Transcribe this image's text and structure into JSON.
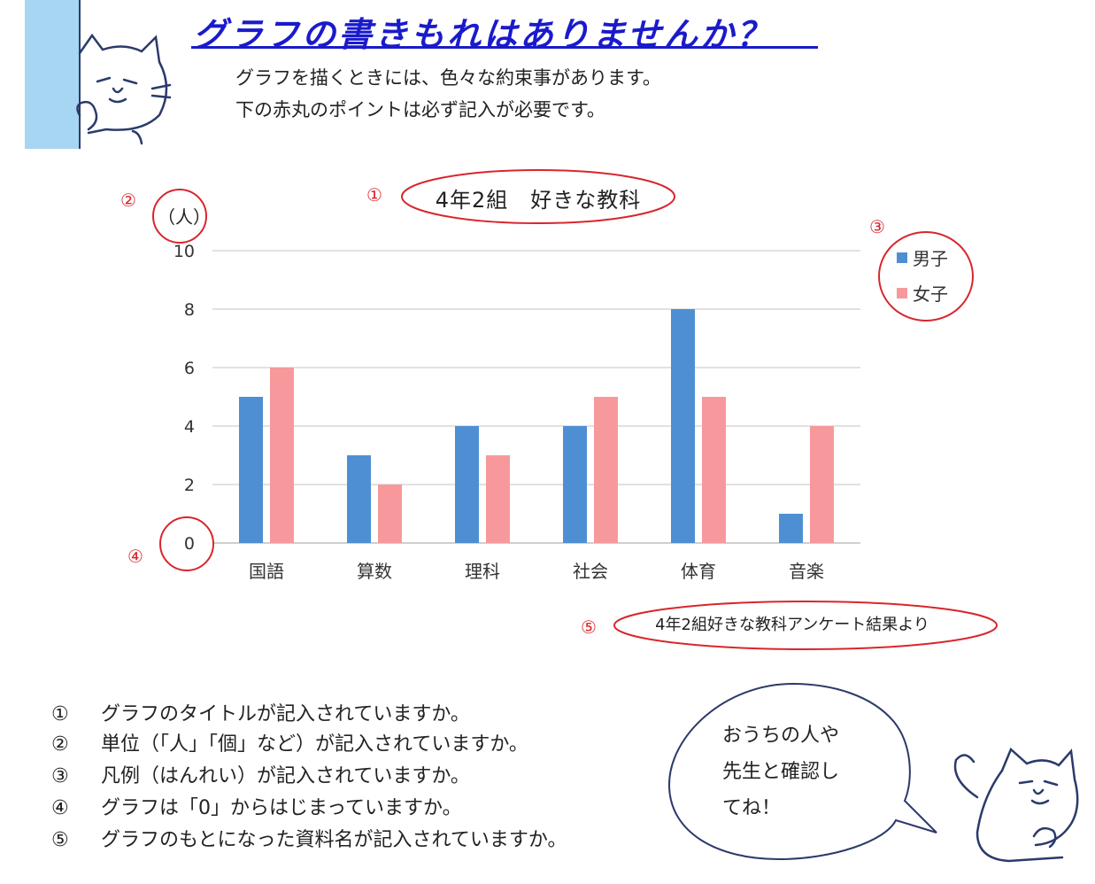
{
  "header": {
    "title": "グラフの書きもれはありませんか？",
    "intro_line1": "グラフを描くときには、色々な約束事があります。",
    "intro_line2": "下の赤丸のポイントは必ず記入が必要です。"
  },
  "markers": {
    "m1": "①",
    "m2": "②",
    "m3": "③",
    "m4": "④",
    "m5": "⑤"
  },
  "chart_data": {
    "type": "bar",
    "title": "4年2組　好きな教科",
    "ylabel": "（人）",
    "xlabel": "",
    "categories": [
      "国語",
      "算数",
      "理科",
      "社会",
      "体育",
      "音楽"
    ],
    "series": [
      {
        "name": "男子",
        "values": [
          5,
          3,
          4,
          4,
          8,
          1
        ],
        "color": "#4e8fd4"
      },
      {
        "name": "女子",
        "values": [
          6,
          2,
          3,
          5,
          5,
          4
        ],
        "color": "#f7999c"
      }
    ],
    "ylim": [
      0,
      10
    ],
    "yticks": [
      "0",
      "2",
      "4",
      "6",
      "8",
      "10"
    ],
    "grid": true,
    "legend_position": "right",
    "source": "4年2組好きな教科アンケート結果より"
  },
  "checklist": [
    {
      "num": "①",
      "text": "グラフのタイトルが記入されていますか。"
    },
    {
      "num": "②",
      "text": "単位（「人」「個」など）が記入されていますか。"
    },
    {
      "num": "③",
      "text": "凡例（はんれい）が記入されていますか。"
    },
    {
      "num": "④",
      "text": "グラフは「0」からはじまっていますか。"
    },
    {
      "num": "⑤",
      "text": "グラフのもとになった資料名が記入されていますか。"
    }
  ],
  "speech_bubble": {
    "text": "おうちの人や\n先生と確認し\nてね！"
  },
  "colors": {
    "highlight_red": "#d8262c",
    "title_blue": "#1a1acc",
    "panel_blue": "#a6d6f2"
  }
}
